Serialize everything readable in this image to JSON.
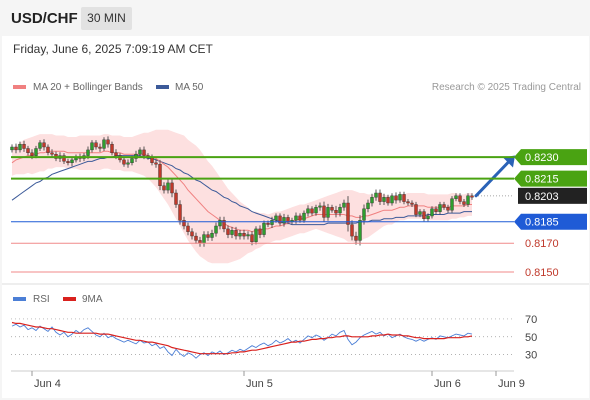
{
  "header": {
    "symbol": "USD/CHF",
    "timeframe": "30 MIN"
  },
  "datetime": "Friday, June 6, 2025 7:09:19 AM CET",
  "legend": {
    "ma20": "MA 20 + Bollinger Bands",
    "ma50": "MA 50",
    "credit": "Research © 2025 Trading Central"
  },
  "rsi_legend": {
    "rsi": "RSI",
    "ma9": "9MA"
  },
  "colors": {
    "ma20": "#f08080",
    "ma50": "#3c5a99",
    "band_fill": "#fde0e0",
    "up": "#2e9e2e",
    "down": "#c0392b",
    "resistance": "#4aa312",
    "support": "#1f5bd6",
    "support_light": "#f08a8a",
    "arrow": "#2a62b7",
    "rsi_line": "#4c7fd6",
    "rsi_ma": "#d9211e"
  },
  "chart_data": [
    {
      "type": "candlestick",
      "title": "USD/CHF",
      "x_ticks": [
        "Jun 4",
        "Jun 5",
        "Jun 6",
        "Jun 9"
      ],
      "x_tick_index": [
        5,
        58,
        105,
        121
      ],
      "bar_count": 116,
      "ylim": [
        0.8143,
        0.826
      ],
      "last_price": 0.8203,
      "levels": [
        {
          "label": "0.8230",
          "value": 0.823,
          "kind": "resistance"
        },
        {
          "label": "0.8215",
          "value": 0.8215,
          "kind": "resistance"
        },
        {
          "label": "0.8185",
          "value": 0.8185,
          "kind": "support"
        },
        {
          "label": "0.8170",
          "value": 0.817,
          "kind": "support-light"
        },
        {
          "label": "0.8150",
          "value": 0.815,
          "kind": "support-light"
        }
      ],
      "forecast_arrow": {
        "from": {
          "index": 116,
          "value": 0.8203
        },
        "to": {
          "index": 125,
          "value": 0.8229
        }
      },
      "close": [
        0.8237,
        0.8235,
        0.8239,
        0.8236,
        0.8233,
        0.8231,
        0.8236,
        0.824,
        0.8237,
        0.8233,
        0.8232,
        0.8229,
        0.8231,
        0.8227,
        0.8226,
        0.8228,
        0.823,
        0.8229,
        0.8231,
        0.8235,
        0.824,
        0.8237,
        0.8236,
        0.8242,
        0.8239,
        0.8233,
        0.8231,
        0.8228,
        0.8225,
        0.8226,
        0.8229,
        0.8232,
        0.8235,
        0.8231,
        0.823,
        0.8226,
        0.8225,
        0.821,
        0.8207,
        0.8212,
        0.8205,
        0.8197,
        0.8186,
        0.8182,
        0.8178,
        0.8175,
        0.8172,
        0.817,
        0.8176,
        0.8174,
        0.8177,
        0.8182,
        0.8186,
        0.818,
        0.8176,
        0.8179,
        0.8175,
        0.8177,
        0.8175,
        0.8176,
        0.8171,
        0.818,
        0.8176,
        0.8184,
        0.8183,
        0.8186,
        0.8189,
        0.8184,
        0.8188,
        0.8185,
        0.8186,
        0.8189,
        0.8186,
        0.8191,
        0.8194,
        0.8191,
        0.8195,
        0.8196,
        0.8188,
        0.8195,
        0.8193,
        0.8191,
        0.8195,
        0.8198,
        0.8183,
        0.8175,
        0.8172,
        0.8186,
        0.8194,
        0.8198,
        0.8202,
        0.8205,
        0.8199,
        0.8202,
        0.8198,
        0.8203,
        0.82,
        0.8204,
        0.8199,
        0.8198,
        0.8197,
        0.819,
        0.8192,
        0.8187,
        0.8189,
        0.8194,
        0.8192,
        0.8197,
        0.8195,
        0.8193,
        0.8201,
        0.8203,
        0.8199,
        0.8197,
        0.8203,
        0.8202
      ],
      "ma20": [
        0.8226,
        0.8228,
        0.8229,
        0.823,
        0.8231,
        0.8231,
        0.8232,
        0.8233,
        0.8233,
        0.8234,
        0.8234,
        0.8234,
        0.8234,
        0.8234,
        0.8233,
        0.8233,
        0.8233,
        0.8233,
        0.8233,
        0.8233,
        0.8233,
        0.8233,
        0.8233,
        0.8234,
        0.8234,
        0.8233,
        0.8233,
        0.8233,
        0.8232,
        0.8232,
        0.8232,
        0.8232,
        0.8232,
        0.8232,
        0.8231,
        0.823,
        0.8229,
        0.8227,
        0.8225,
        0.8223,
        0.822,
        0.8217,
        0.8214,
        0.8211,
        0.8207,
        0.8204,
        0.8201,
        0.8198,
        0.8195,
        0.8192,
        0.819,
        0.8188,
        0.8186,
        0.8184,
        0.8182,
        0.8181,
        0.818,
        0.8179,
        0.8179,
        0.8179,
        0.8178,
        0.8179,
        0.8179,
        0.818,
        0.818,
        0.8181,
        0.8182,
        0.8182,
        0.8183,
        0.8184,
        0.8185,
        0.8186,
        0.8187,
        0.8187,
        0.8188,
        0.8189,
        0.819,
        0.819,
        0.819,
        0.819,
        0.819,
        0.819,
        0.819,
        0.819,
        0.8189,
        0.8189,
        0.8188,
        0.8188,
        0.8189,
        0.8189,
        0.819,
        0.8191,
        0.8192,
        0.8193,
        0.8193,
        0.8193,
        0.8194,
        0.8195,
        0.8195,
        0.8196,
        0.8196,
        0.8196,
        0.8196,
        0.8196,
        0.8195,
        0.8195,
        0.8195,
        0.8195,
        0.8195,
        0.8195,
        0.8196,
        0.8196,
        0.8196,
        0.8196,
        0.8197,
        0.8197
      ],
      "ma50": [
        0.82,
        0.8202,
        0.8204,
        0.8206,
        0.8208,
        0.821,
        0.8212,
        0.8213,
        0.8215,
        0.8216,
        0.8218,
        0.8219,
        0.822,
        0.8221,
        0.8222,
        0.8223,
        0.8224,
        0.8225,
        0.8226,
        0.8227,
        0.8227,
        0.8228,
        0.8229,
        0.8229,
        0.823,
        0.823,
        0.8231,
        0.8231,
        0.8231,
        0.8231,
        0.8231,
        0.8231,
        0.8231,
        0.823,
        0.8229,
        0.8229,
        0.8228,
        0.8227,
        0.8226,
        0.8225,
        0.8224,
        0.8222,
        0.8221,
        0.8219,
        0.8218,
        0.8216,
        0.8214,
        0.8213,
        0.8211,
        0.8209,
        0.8207,
        0.8206,
        0.8204,
        0.8202,
        0.8201,
        0.8199,
        0.8198,
        0.8196,
        0.8195,
        0.8194,
        0.8192,
        0.8191,
        0.819,
        0.8189,
        0.8188,
        0.8187,
        0.8186,
        0.8185,
        0.8184,
        0.8184,
        0.8183,
        0.8183,
        0.8183,
        0.8183,
        0.8183,
        0.8183,
        0.8183,
        0.8183,
        0.8183,
        0.8184,
        0.8184,
        0.8184,
        0.8184,
        0.8184,
        0.8184,
        0.8184,
        0.8184,
        0.8185,
        0.8185,
        0.8185,
        0.8186,
        0.8186,
        0.8186,
        0.8187,
        0.8187,
        0.8187,
        0.8188,
        0.8188,
        0.8188,
        0.8189,
        0.8189,
        0.8189,
        0.8189,
        0.8189,
        0.819,
        0.819,
        0.819,
        0.819,
        0.819,
        0.8191,
        0.8191,
        0.8191,
        0.8191,
        0.8192,
        0.8192,
        0.8192
      ],
      "bb_width": [
        0.0009,
        0.001,
        0.0011,
        0.0012,
        0.0012,
        0.0013,
        0.0013,
        0.0013,
        0.0013,
        0.0012,
        0.0012,
        0.0011,
        0.0011,
        0.0011,
        0.0011,
        0.0011,
        0.0011,
        0.0012,
        0.0012,
        0.0012,
        0.0012,
        0.0012,
        0.0012,
        0.0012,
        0.0012,
        0.0012,
        0.0012,
        0.0012,
        0.0012,
        0.0012,
        0.0012,
        0.0013,
        0.0014,
        0.0015,
        0.0016,
        0.0018,
        0.002,
        0.0022,
        0.0024,
        0.0026,
        0.0028,
        0.003,
        0.0032,
        0.0034,
        0.0035,
        0.0036,
        0.0037,
        0.0037,
        0.0036,
        0.0035,
        0.0034,
        0.0032,
        0.003,
        0.0028,
        0.0026,
        0.0024,
        0.0022,
        0.002,
        0.0018,
        0.0016,
        0.0014,
        0.0013,
        0.0012,
        0.0011,
        0.001,
        0.001,
        0.001,
        0.001,
        0.001,
        0.001,
        0.001,
        0.001,
        0.001,
        0.001,
        0.001,
        0.001,
        0.001,
        0.0011,
        0.0012,
        0.0013,
        0.0014,
        0.0015,
        0.0016,
        0.0017,
        0.0018,
        0.0018,
        0.0018,
        0.0017,
        0.0016,
        0.0015,
        0.0014,
        0.0013,
        0.0012,
        0.0011,
        0.001,
        0.001,
        0.0009,
        0.0009,
        0.0009,
        0.0009,
        0.0009,
        0.0009,
        0.0009,
        0.0009,
        0.0009,
        0.0009,
        0.0009,
        0.0009,
        0.0009,
        0.0009,
        0.0009,
        0.0009,
        0.0008,
        0.0008,
        0.0008,
        0.0008
      ],
      "wick": [
        0.0003,
        0.0004,
        0.0003,
        0.0004,
        0.0003,
        0.0004,
        0.0003,
        0.0003,
        0.0004,
        0.0003,
        0.0004,
        0.0003,
        0.0004,
        0.0003,
        0.0003,
        0.0004,
        0.0003,
        0.0004,
        0.0003,
        0.0004,
        0.0003,
        0.0003,
        0.0004,
        0.0003,
        0.0004,
        0.0003,
        0.0004,
        0.0003,
        0.0003,
        0.0004,
        0.0003,
        0.0004,
        0.0003,
        0.0004,
        0.0003,
        0.0003,
        0.0004,
        0.0005,
        0.0004,
        0.0004,
        0.0005,
        0.0004,
        0.0005,
        0.0004,
        0.0004,
        0.0004,
        0.0004,
        0.0004,
        0.0004,
        0.0004,
        0.0004,
        0.0004,
        0.0004,
        0.0004,
        0.0004,
        0.0004,
        0.0004,
        0.0004,
        0.0004,
        0.0004,
        0.0004,
        0.0003,
        0.0004,
        0.0003,
        0.0003,
        0.0004,
        0.0003,
        0.0003,
        0.0004,
        0.0003,
        0.0003,
        0.0004,
        0.0003,
        0.0003,
        0.0004,
        0.0003,
        0.0003,
        0.0004,
        0.0005,
        0.0004,
        0.0003,
        0.0005,
        0.0004,
        0.0004,
        0.0008,
        0.0005,
        0.0005,
        0.0006,
        0.0005,
        0.0004,
        0.0004,
        0.0004,
        0.0004,
        0.0004,
        0.0003,
        0.0003,
        0.0004,
        0.0003,
        0.0003,
        0.0003,
        0.0003,
        0.0003,
        0.0003,
        0.0003,
        0.0003,
        0.0003,
        0.0003,
        0.0003,
        0.0003,
        0.0003,
        0.0003,
        0.0003,
        0.0003,
        0.0003,
        0.0003,
        0.0003
      ]
    },
    {
      "type": "line",
      "title": "RSI",
      "y_ticks": [
        70,
        50,
        30
      ],
      "ylim": [
        15,
        80
      ],
      "series": [
        {
          "name": "RSI",
          "values": [
            62,
            64,
            61,
            63,
            58,
            60,
            57,
            62,
            59,
            56,
            61,
            55,
            52,
            55,
            50,
            53,
            57,
            54,
            58,
            60,
            56,
            52,
            50,
            54,
            49,
            51,
            48,
            46,
            44,
            46,
            44,
            42,
            46,
            43,
            44,
            40,
            42,
            37,
            39,
            33,
            29,
            36,
            31,
            28,
            32,
            30,
            26,
            30,
            32,
            29,
            33,
            31,
            34,
            30,
            32,
            35,
            33,
            36,
            34,
            37,
            40,
            38,
            41,
            43,
            40,
            42,
            46,
            43,
            45,
            48,
            44,
            46,
            43,
            47,
            51,
            49,
            52,
            50,
            46,
            49,
            53,
            51,
            55,
            57,
            47,
            41,
            44,
            49,
            52,
            54,
            56,
            53,
            55,
            51,
            53,
            49,
            51,
            53,
            50,
            48,
            47,
            45,
            47,
            45,
            47,
            49,
            47,
            51,
            50,
            49,
            51,
            53,
            52,
            51,
            54,
            53
          ]
        },
        {
          "name": "9MA",
          "values": [
            66,
            65,
            65,
            64,
            63,
            62,
            61,
            61,
            60,
            59,
            59,
            58,
            57,
            56,
            55,
            55,
            54,
            54,
            54,
            54,
            54,
            54,
            53,
            53,
            53,
            52,
            51,
            50,
            49,
            48,
            47,
            46,
            46,
            45,
            44,
            44,
            43,
            42,
            41,
            40,
            38,
            37,
            36,
            35,
            34,
            33,
            32,
            31,
            31,
            31,
            31,
            31,
            31,
            31,
            31,
            32,
            32,
            33,
            33,
            34,
            35,
            35,
            36,
            37,
            38,
            39,
            40,
            41,
            42,
            43,
            44,
            44,
            45,
            45,
            46,
            47,
            47,
            48,
            48,
            49,
            49,
            50,
            50,
            51,
            51,
            50,
            50,
            50,
            50,
            50,
            51,
            51,
            52,
            52,
            53,
            52,
            52,
            52,
            51,
            51,
            50,
            49,
            49,
            48,
            48,
            48,
            48,
            48,
            48,
            49,
            49,
            49,
            49,
            50,
            50,
            51
          ]
        }
      ]
    }
  ]
}
